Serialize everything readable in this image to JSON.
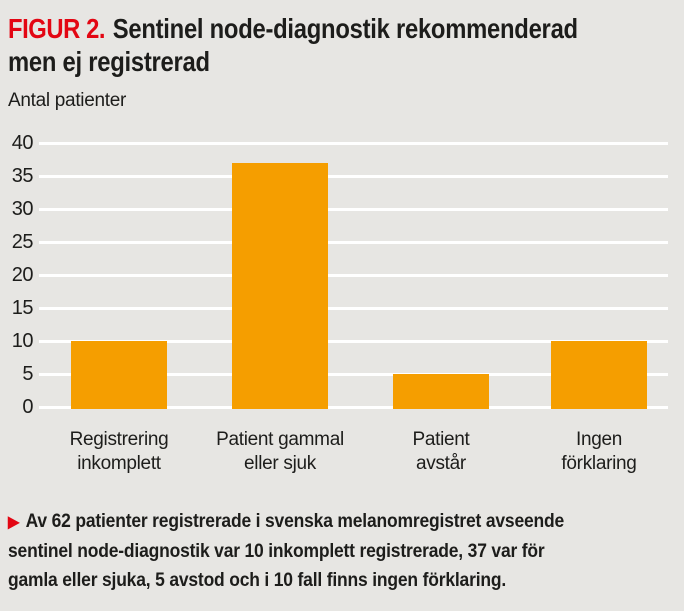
{
  "header": {
    "figure_label": "FIGUR 2.",
    "title": "Sentinel node-diagnostik rekommenderad\nmen ej registrerad"
  },
  "chart_data": {
    "type": "bar",
    "title": "Sentinel node-diagnostik rekommenderad men ej registrerad",
    "ylabel": "Antal patienter",
    "xlabel": "",
    "categories": [
      "Registrering inkomplett",
      "Patient gammal eller sjuk",
      "Patient avstår",
      "Ingen förklaring"
    ],
    "category_label_lines": [
      [
        "Registrering",
        "inkomplett"
      ],
      [
        "Patient gammal",
        "eller sjuk"
      ],
      [
        "Patient",
        "avstår"
      ],
      [
        "Ingen",
        "förklaring"
      ]
    ],
    "values": [
      10,
      37,
      5,
      10
    ],
    "ylim": [
      0,
      40
    ],
    "yticks": [
      0,
      5,
      10,
      15,
      20,
      25,
      30,
      35,
      40
    ],
    "grid": true,
    "legend": false,
    "bar_color": "#f59e00",
    "grid_color": "#ffffff"
  },
  "caption": {
    "arrow": "▶",
    "text": "Av 62 patienter registrerade i svenska melanomregistret avseende\nsentinel node-diagnostik var 10 inkomplett registrerade, 37 var för\ngamla eller sjuka, 5 avstod och i 10 fall finns ingen förklaring."
  },
  "colors": {
    "background": "#e7e6e3",
    "accent_red": "#e30613",
    "bar_orange": "#f59e00",
    "grid_white": "#ffffff",
    "text": "#1d1d1b"
  }
}
